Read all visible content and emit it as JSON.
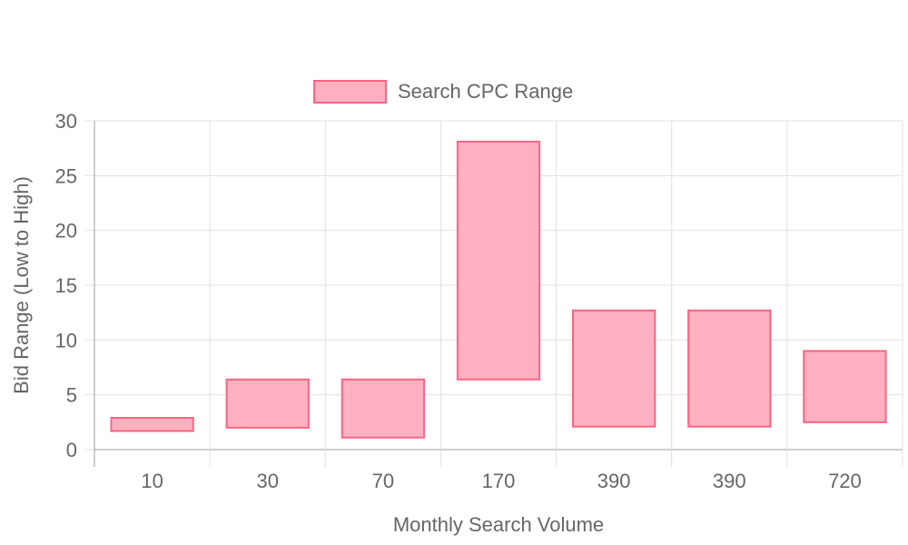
{
  "chart_data": {
    "type": "bar",
    "subtype": "floating-range",
    "categories": [
      "10",
      "30",
      "70",
      "170",
      "390",
      "390",
      "720"
    ],
    "series": [
      {
        "name": "Search CPC Range",
        "ranges": [
          [
            1.7,
            2.9
          ],
          [
            2.0,
            6.4
          ],
          [
            1.1,
            6.4
          ],
          [
            6.4,
            28.1
          ],
          [
            2.1,
            12.7
          ],
          [
            2.1,
            12.7
          ],
          [
            2.5,
            9.0
          ]
        ]
      }
    ],
    "xlabel": "Monthly Search Volume",
    "ylabel": "Bid Range (Low to High)",
    "ylim": [
      0,
      30
    ],
    "yticks": [
      0,
      5,
      10,
      15,
      20,
      25,
      30
    ],
    "grid": true,
    "legend": "top-center",
    "colors": {
      "fill": "#ffb1c1",
      "stroke": "#ff6384"
    }
  }
}
